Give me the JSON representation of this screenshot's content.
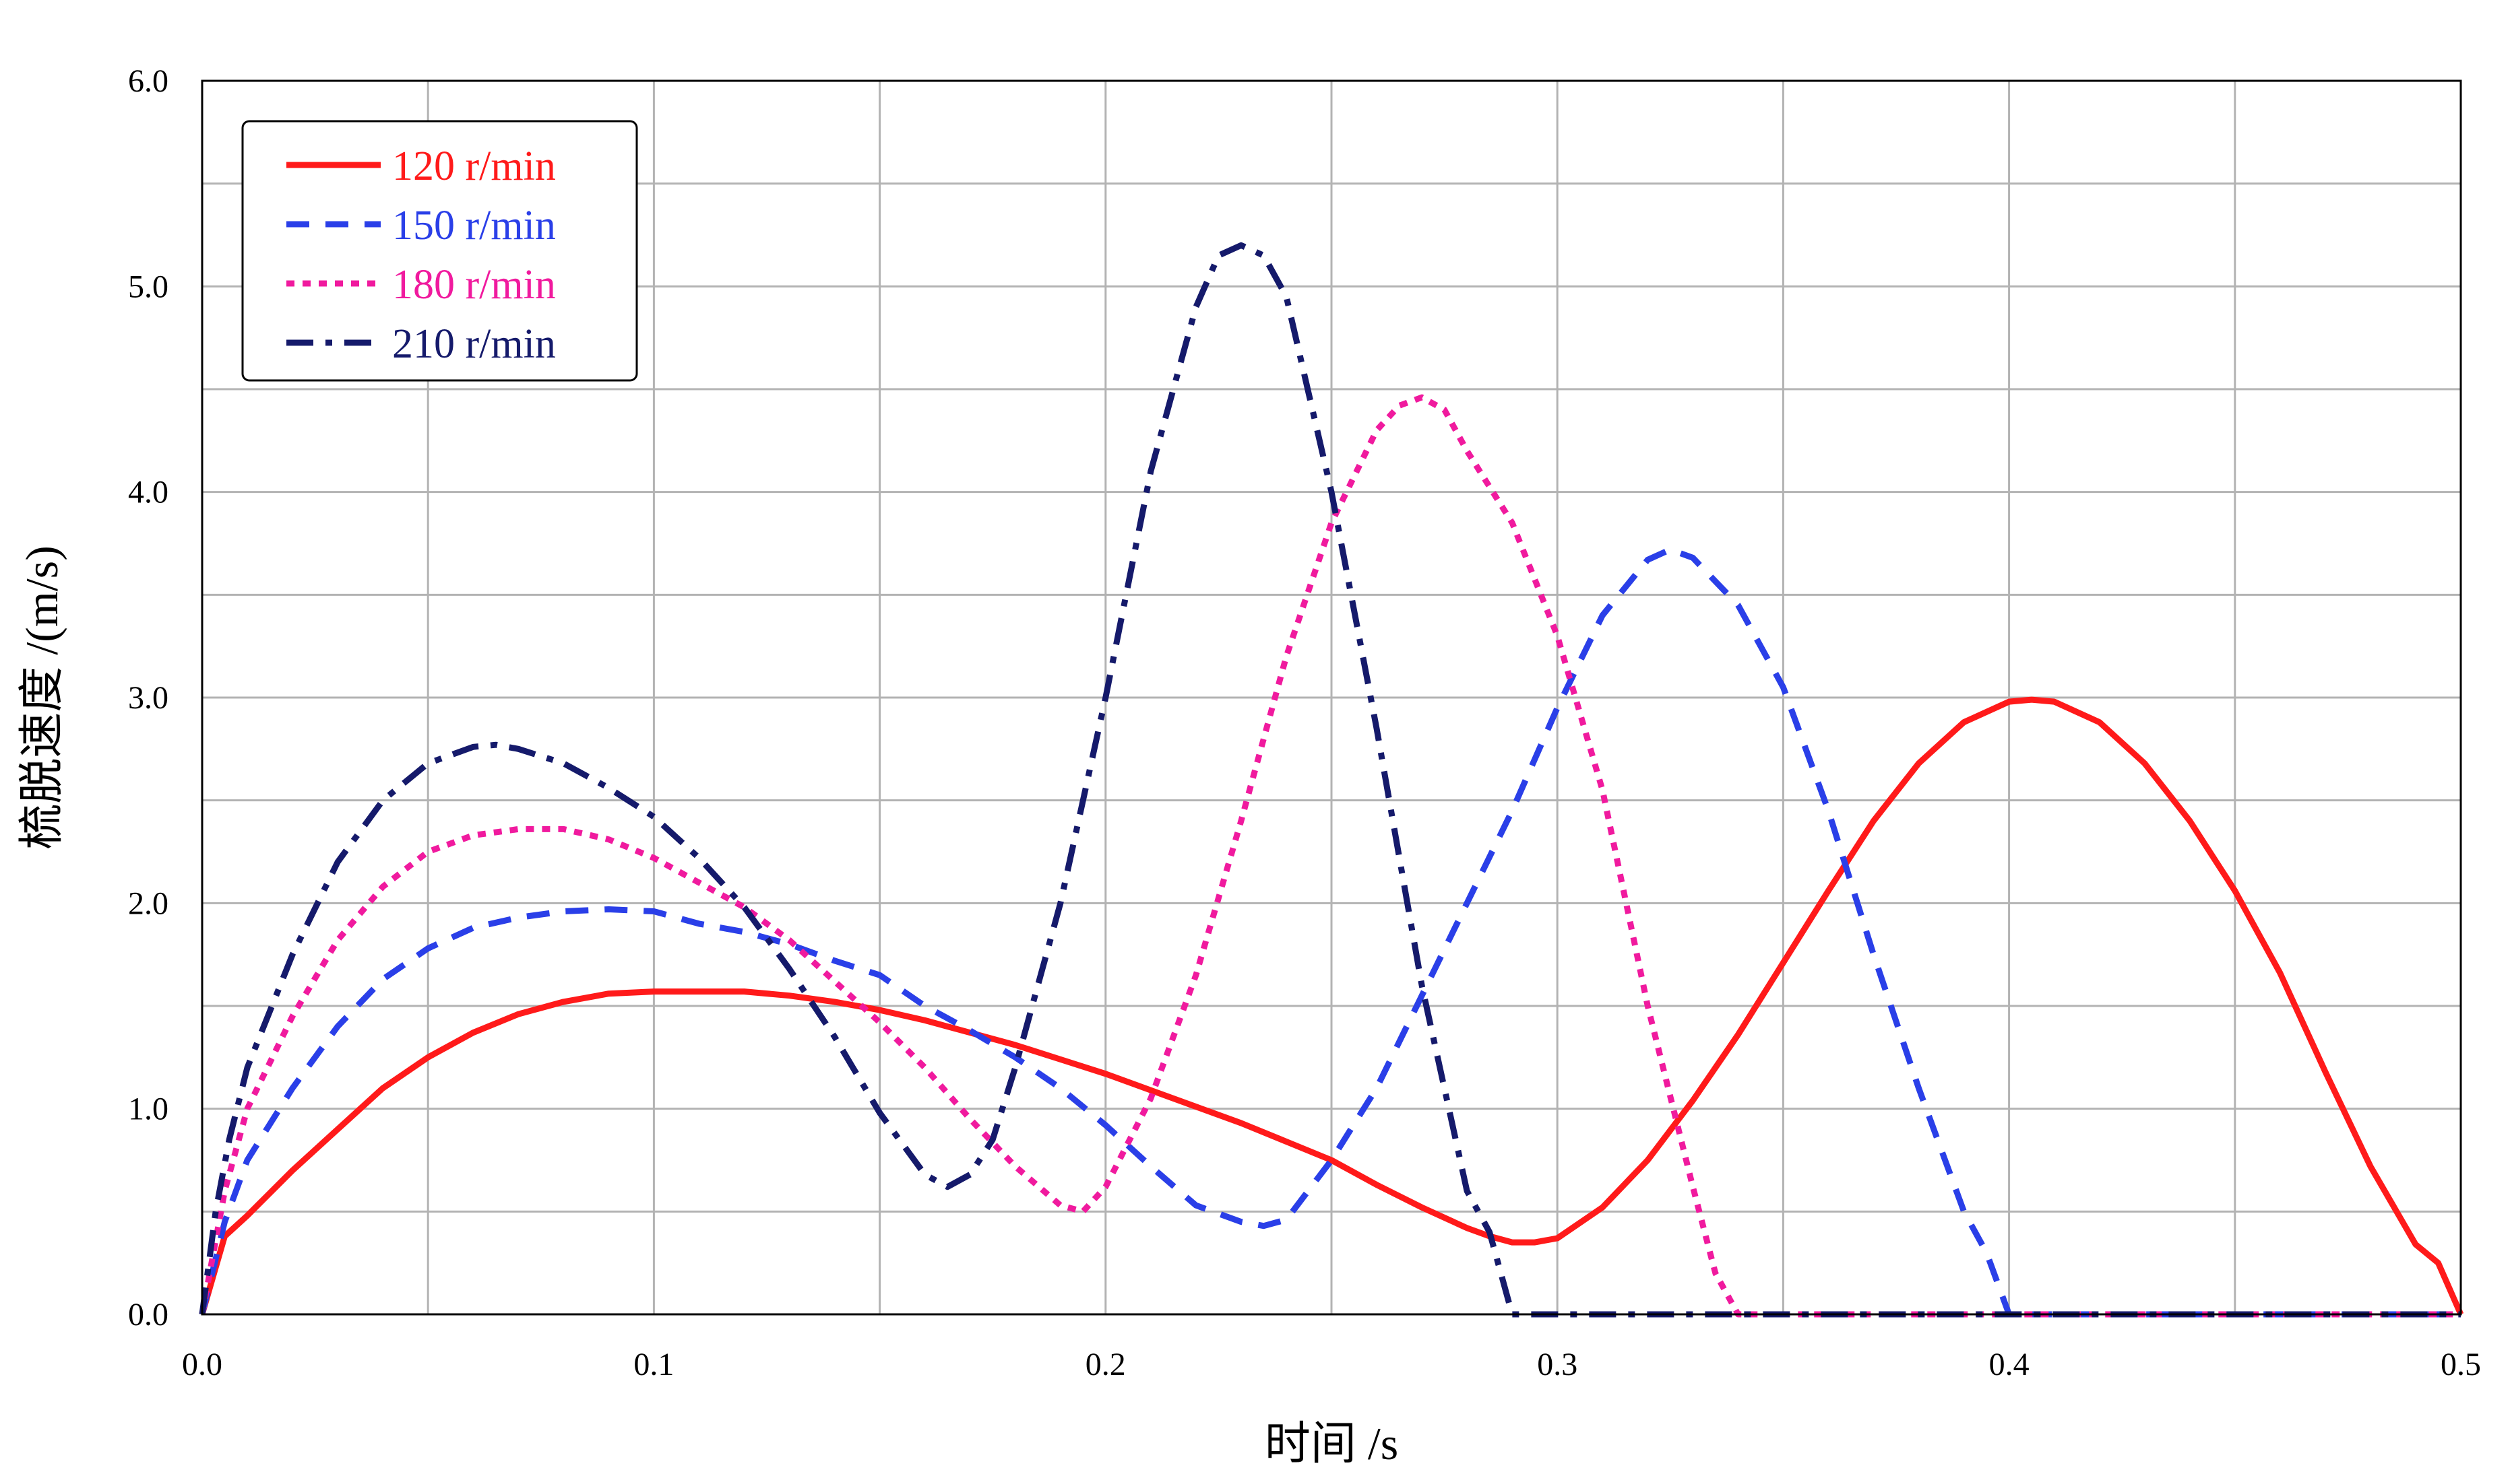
{
  "chart_data": {
    "type": "line",
    "title": "",
    "xlabel": "时间 /s",
    "ylabel": "梳脱速度 /(m/s)",
    "xlim": [
      0,
      0.5
    ],
    "ylim": [
      0,
      6
    ],
    "x_ticks": [
      "0.0",
      "0.1",
      "0.2",
      "0.3",
      "0.4",
      "0.5"
    ],
    "y_ticks": [
      "0.0",
      "1.0",
      "2.0",
      "3.0",
      "4.0",
      "5.0",
      "6.0"
    ],
    "x_tick_values": [
      0,
      0.1,
      0.2,
      0.3,
      0.4,
      0.5
    ],
    "y_tick_values": [
      0,
      1,
      2,
      3,
      4,
      5,
      6
    ],
    "grid_x": [
      0,
      0.05,
      0.1,
      0.15,
      0.2,
      0.25,
      0.3,
      0.35,
      0.4,
      0.45,
      0.5
    ],
    "grid_y": [
      0,
      0.5,
      1,
      1.5,
      2,
      2.5,
      3,
      3.5,
      4,
      4.5,
      5,
      5.5,
      6
    ],
    "grid": true,
    "legend_position": "top-left",
    "series": [
      {
        "name": "120 r/min",
        "color": "#ff1a1a",
        "dash": "solid",
        "x": [
          0,
          0.005,
          0.01,
          0.02,
          0.03,
          0.04,
          0.05,
          0.06,
          0.07,
          0.08,
          0.09,
          0.1,
          0.11,
          0.12,
          0.13,
          0.14,
          0.15,
          0.16,
          0.17,
          0.18,
          0.19,
          0.2,
          0.21,
          0.22,
          0.23,
          0.24,
          0.25,
          0.26,
          0.27,
          0.28,
          0.285,
          0.29,
          0.295,
          0.3,
          0.31,
          0.32,
          0.33,
          0.34,
          0.35,
          0.36,
          0.37,
          0.38,
          0.39,
          0.4,
          0.405,
          0.41,
          0.42,
          0.43,
          0.44,
          0.45,
          0.46,
          0.47,
          0.48,
          0.49,
          0.495,
          0.5
        ],
        "y": [
          0,
          0.38,
          0.48,
          0.7,
          0.9,
          1.1,
          1.25,
          1.37,
          1.46,
          1.52,
          1.56,
          1.57,
          1.57,
          1.57,
          1.55,
          1.52,
          1.48,
          1.43,
          1.37,
          1.31,
          1.24,
          1.17,
          1.09,
          1.01,
          0.93,
          0.84,
          0.75,
          0.63,
          0.52,
          0.42,
          0.38,
          0.35,
          0.35,
          0.37,
          0.52,
          0.75,
          1.04,
          1.36,
          1.71,
          2.06,
          2.4,
          2.68,
          2.88,
          2.98,
          2.99,
          2.98,
          2.88,
          2.68,
          2.4,
          2.06,
          1.66,
          1.18,
          0.72,
          0.34,
          0.25,
          0
        ]
      },
      {
        "name": "150 r/min",
        "color": "#2a3fe8",
        "dash": "dashed",
        "x": [
          0,
          0.005,
          0.01,
          0.02,
          0.03,
          0.04,
          0.05,
          0.06,
          0.07,
          0.08,
          0.09,
          0.1,
          0.11,
          0.12,
          0.13,
          0.14,
          0.15,
          0.16,
          0.17,
          0.18,
          0.19,
          0.2,
          0.21,
          0.22,
          0.23,
          0.235,
          0.24,
          0.25,
          0.26,
          0.27,
          0.28,
          0.29,
          0.3,
          0.31,
          0.32,
          0.325,
          0.33,
          0.34,
          0.35,
          0.36,
          0.37,
          0.38,
          0.39,
          0.395,
          0.4,
          0.45,
          0.5
        ],
        "y": [
          0,
          0.45,
          0.75,
          1.1,
          1.4,
          1.63,
          1.78,
          1.88,
          1.93,
          1.96,
          1.97,
          1.96,
          1.9,
          1.86,
          1.8,
          1.72,
          1.65,
          1.5,
          1.38,
          1.25,
          1.1,
          0.92,
          0.72,
          0.53,
          0.45,
          0.43,
          0.46,
          0.75,
          1.1,
          1.55,
          2.0,
          2.45,
          2.95,
          3.4,
          3.67,
          3.72,
          3.68,
          3.45,
          3.05,
          2.45,
          1.75,
          1.1,
          0.5,
          0.3,
          0,
          0,
          0
        ]
      },
      {
        "name": "180 r/min",
        "color": "#f01a9e",
        "dash": "dotted",
        "x": [
          0,
          0.005,
          0.01,
          0.02,
          0.03,
          0.04,
          0.05,
          0.06,
          0.07,
          0.08,
          0.09,
          0.1,
          0.11,
          0.12,
          0.13,
          0.14,
          0.15,
          0.16,
          0.17,
          0.18,
          0.19,
          0.195,
          0.2,
          0.21,
          0.22,
          0.23,
          0.24,
          0.25,
          0.26,
          0.265,
          0.27,
          0.275,
          0.28,
          0.29,
          0.3,
          0.31,
          0.32,
          0.33,
          0.335,
          0.34,
          0.4,
          0.5
        ],
        "y": [
          0,
          0.6,
          1.0,
          1.45,
          1.82,
          2.08,
          2.25,
          2.33,
          2.36,
          2.36,
          2.31,
          2.22,
          2.1,
          1.98,
          1.82,
          1.62,
          1.42,
          1.2,
          0.95,
          0.72,
          0.53,
          0.5,
          0.62,
          1.05,
          1.65,
          2.4,
          3.2,
          3.85,
          4.3,
          4.42,
          4.46,
          4.4,
          4.2,
          3.85,
          3.3,
          2.55,
          1.5,
          0.62,
          0.2,
          0,
          0,
          0
        ]
      },
      {
        "name": "210 r/min",
        "color": "#151a6b",
        "dash": "dashdot",
        "x": [
          0,
          0.003,
          0.006,
          0.01,
          0.02,
          0.03,
          0.04,
          0.05,
          0.06,
          0.065,
          0.07,
          0.08,
          0.09,
          0.1,
          0.11,
          0.12,
          0.13,
          0.14,
          0.15,
          0.16,
          0.165,
          0.17,
          0.175,
          0.18,
          0.19,
          0.2,
          0.21,
          0.22,
          0.225,
          0.23,
          0.235,
          0.24,
          0.25,
          0.26,
          0.27,
          0.28,
          0.285,
          0.29,
          0.3,
          0.4,
          0.5
        ],
        "y": [
          0,
          0.5,
          0.85,
          1.2,
          1.75,
          2.2,
          2.5,
          2.68,
          2.76,
          2.77,
          2.75,
          2.68,
          2.56,
          2.42,
          2.22,
          1.98,
          1.68,
          1.35,
          0.98,
          0.68,
          0.62,
          0.68,
          0.85,
          1.2,
          2.0,
          3.0,
          4.1,
          4.9,
          5.15,
          5.2,
          5.15,
          4.95,
          4.0,
          2.85,
          1.6,
          0.6,
          0.4,
          0,
          0,
          0,
          0
        ]
      }
    ]
  }
}
